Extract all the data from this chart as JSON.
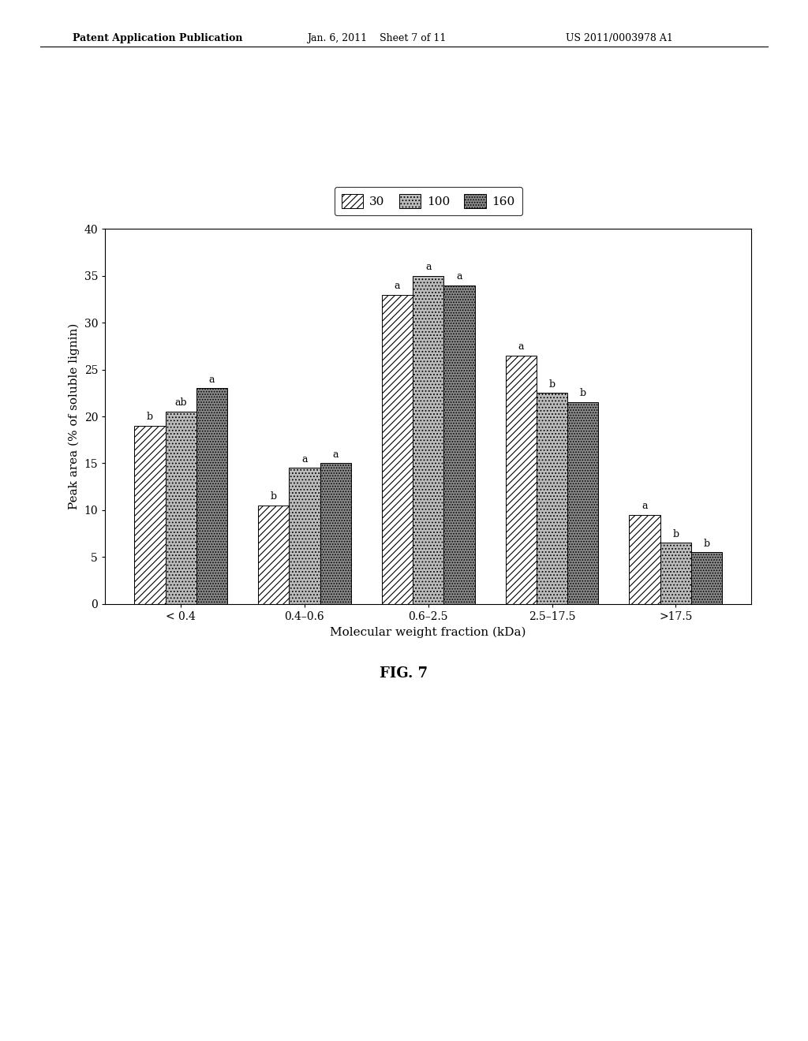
{
  "categories": [
    "< 0.4",
    "0.4-0.6",
    "0.6-2.5",
    "2.5-17.5",
    ">17.5"
  ],
  "categories_display": [
    "< 0.4",
    "0.4–0.6",
    "0.6–2.5",
    "2.5–17.5",
    ">17.5"
  ],
  "series": {
    "30": [
      19.0,
      10.5,
      33.0,
      26.5,
      9.5
    ],
    "100": [
      20.5,
      14.5,
      35.0,
      22.5,
      6.5
    ],
    "160": [
      23.0,
      15.0,
      34.0,
      21.5,
      5.5
    ]
  },
  "labels_above": {
    "30": [
      "b",
      "b",
      "a",
      "a",
      "a"
    ],
    "100": [
      "ab",
      "a",
      "a",
      "b",
      "b"
    ],
    "160": [
      "a",
      "a",
      "a",
      "b",
      "b"
    ]
  },
  "legend_labels": [
    "30",
    "100",
    "160"
  ],
  "xlabel": "Molecular weight fraction (kDa)",
  "ylabel": "Peak area (% of soluble lignin)",
  "ylim": [
    0,
    40
  ],
  "yticks": [
    0,
    5,
    10,
    15,
    20,
    25,
    30,
    35,
    40
  ],
  "figure_label": "FIG. 7",
  "bar_width": 0.25,
  "hatch_30": "////",
  "hatch_100": "....",
  "hatch_160": ".....",
  "facecolor_30": "#ffffff",
  "facecolor_100": "#bbbbbb",
  "facecolor_160": "#888888",
  "header_text_left": "Patent Application Publication",
  "header_text_mid": "Jan. 6, 2011    Sheet 7 of 11",
  "header_text_right": "US 2011/0003978 A1"
}
